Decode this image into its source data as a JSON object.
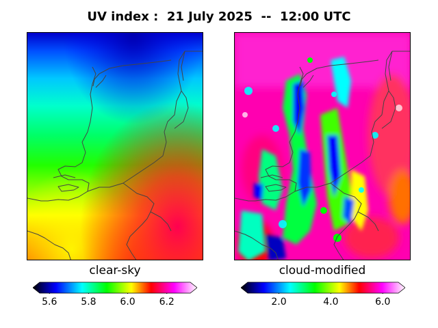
{
  "title": "UV index :  21 July 2025  --  12:00 UTC",
  "panels": [
    {
      "label": "clear-sky",
      "colorbar": {
        "min": 5.55,
        "max": 6.32,
        "ticks": [
          5.6,
          5.8,
          6.0,
          6.2
        ],
        "tick_labels": [
          "5.6",
          "5.8",
          "6.0",
          "6.2"
        ],
        "extend": "both"
      }
    },
    {
      "label": "cloud-modified",
      "colorbar": {
        "min": 0.8,
        "max": 6.6,
        "ticks": [
          2.0,
          4.0,
          6.0
        ],
        "tick_labels": [
          "2.0",
          "4.0",
          "6.0"
        ],
        "extend": "both"
      }
    }
  ],
  "colormap": [
    "#000000",
    "#0000ff",
    "#00ffff",
    "#00ff00",
    "#ffff00",
    "#ff0000",
    "#ff00ff",
    "#ffffff"
  ],
  "border_color": "#444444"
}
